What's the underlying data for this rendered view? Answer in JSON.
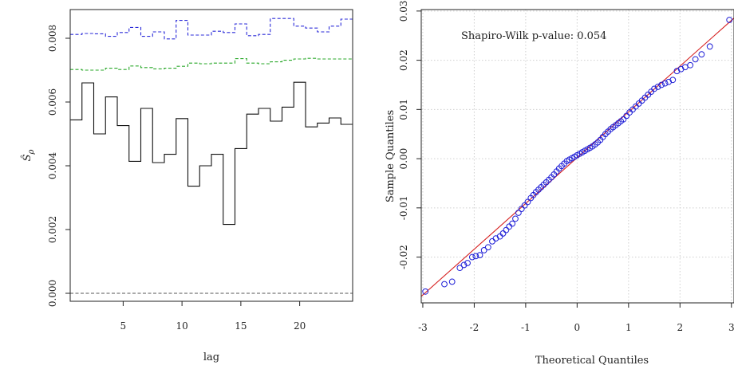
{
  "chart_data": [
    {
      "type": "line",
      "step": true,
      "xlabel": "lag",
      "ylabel": "Ŝ",
      "ylabel_subscript": "ρ",
      "xlim": [
        0.5,
        24.5
      ],
      "ylim": [
        -0.00025,
        0.0089
      ],
      "xticks": [
        5,
        10,
        15,
        20
      ],
      "yticks": [
        0.0,
        0.002,
        0.004,
        0.006,
        0.008
      ],
      "ytick_labels": [
        "0.000",
        "0.002",
        "0.004",
        "0.006",
        "0.008"
      ],
      "grid": false,
      "x": [
        1,
        2,
        3,
        4,
        5,
        6,
        7,
        8,
        9,
        10,
        11,
        12,
        13,
        14,
        15,
        16,
        17,
        18,
        19,
        20,
        21,
        22,
        23,
        24
      ],
      "series": [
        {
          "style": "dashed",
          "color": "#2b2bd9",
          "values": [
            0.00812,
            0.00815,
            0.00814,
            0.00806,
            0.00818,
            0.00834,
            0.00806,
            0.0082,
            0.00798,
            0.00856,
            0.0081,
            0.0081,
            0.00822,
            0.00818,
            0.00845,
            0.00808,
            0.00812,
            0.00862,
            0.00862,
            0.00838,
            0.00832,
            0.0082,
            0.00838,
            0.0086
          ]
        },
        {
          "style": "dashed",
          "color": "#2aa82a",
          "values": [
            0.00702,
            0.007,
            0.007,
            0.00706,
            0.00702,
            0.00713,
            0.00708,
            0.00704,
            0.00706,
            0.00712,
            0.00722,
            0.0072,
            0.00722,
            0.00722,
            0.00736,
            0.00722,
            0.0072,
            0.00726,
            0.00731,
            0.00735,
            0.00737,
            0.00735,
            0.00735,
            0.00735
          ]
        },
        {
          "style": "solid",
          "color": "#111111",
          "values": [
            0.00544,
            0.0066,
            0.005,
            0.00616,
            0.00526,
            0.00414,
            0.0058,
            0.0041,
            0.00436,
            0.00548,
            0.00336,
            0.004,
            0.00436,
            0.00216,
            0.00454,
            0.00562,
            0.0058,
            0.0054,
            0.00584,
            0.00662,
            0.00522,
            0.00534,
            0.0055,
            0.0053
          ]
        },
        {
          "style": "dashed",
          "color": "#555555",
          "reference_line": true,
          "values": [
            0,
            0,
            0,
            0,
            0,
            0,
            0,
            0,
            0,
            0,
            0,
            0,
            0,
            0,
            0,
            0,
            0,
            0,
            0,
            0,
            0,
            0,
            0,
            0
          ]
        }
      ]
    },
    {
      "type": "scatter",
      "xlabel": "Theoretical Quantiles",
      "ylabel": "Sample Quantiles",
      "annotation": "Shapiro-Wilk p-value: 0.054",
      "xlim": [
        -3.03,
        3.05
      ],
      "ylim": [
        -0.0293,
        0.0303
      ],
      "xticks": [
        -3,
        -2,
        -1,
        0,
        1,
        2,
        3
      ],
      "xtick_labels": [
        "-3",
        "-2",
        "-1",
        "0",
        "1",
        "2",
        "3"
      ],
      "yticks": [
        -0.02,
        -0.01,
        0.0,
        0.01,
        0.02,
        0.03
      ],
      "ytick_labels": [
        "-0.02",
        "-0.01",
        "0.00",
        "0.01",
        "0.02",
        "0.03"
      ],
      "grid": true,
      "point_color": "#1f1fd6",
      "line_color": "#d62020",
      "reference_line": {
        "intercept": 0.0002,
        "slope": 0.0093
      },
      "points": [
        [
          -2.95,
          -0.027
        ],
        [
          -2.58,
          -0.0255
        ],
        [
          -2.43,
          -0.025
        ],
        [
          -2.28,
          -0.0222
        ],
        [
          -2.2,
          -0.0216
        ],
        [
          -2.13,
          -0.0212
        ],
        [
          -2.04,
          -0.02
        ],
        [
          -1.97,
          -0.0198
        ],
        [
          -1.89,
          -0.0196
        ],
        [
          -1.81,
          -0.0186
        ],
        [
          -1.73,
          -0.018
        ],
        [
          -1.65,
          -0.0168
        ],
        [
          -1.58,
          -0.0162
        ],
        [
          -1.5,
          -0.0158
        ],
        [
          -1.44,
          -0.0152
        ],
        [
          -1.38,
          -0.0145
        ],
        [
          -1.32,
          -0.0138
        ],
        [
          -1.26,
          -0.0132
        ],
        [
          -1.2,
          -0.0122
        ],
        [
          -1.14,
          -0.011
        ],
        [
          -1.08,
          -0.0102
        ],
        [
          -1.02,
          -0.0095
        ],
        [
          -0.96,
          -0.0088
        ],
        [
          -0.9,
          -0.008
        ],
        [
          -0.85,
          -0.0074
        ],
        [
          -0.8,
          -0.0068
        ],
        [
          -0.75,
          -0.0063
        ],
        [
          -0.7,
          -0.0058
        ],
        [
          -0.65,
          -0.0053
        ],
        [
          -0.6,
          -0.0048
        ],
        [
          -0.55,
          -0.0043
        ],
        [
          -0.5,
          -0.0038
        ],
        [
          -0.45,
          -0.0032
        ],
        [
          -0.4,
          -0.0026
        ],
        [
          -0.35,
          -0.002
        ],
        [
          -0.3,
          -0.0015
        ],
        [
          -0.25,
          -0.001
        ],
        [
          -0.2,
          -0.0005
        ],
        [
          -0.15,
          -0.0002
        ],
        [
          -0.1,
          0.0001
        ],
        [
          -0.05,
          0.0004
        ],
        [
          0.0,
          0.0007
        ],
        [
          0.05,
          0.001
        ],
        [
          0.1,
          0.0013
        ],
        [
          0.15,
          0.0016
        ],
        [
          0.2,
          0.0019
        ],
        [
          0.25,
          0.0022
        ],
        [
          0.3,
          0.0025
        ],
        [
          0.35,
          0.0029
        ],
        [
          0.4,
          0.0033
        ],
        [
          0.45,
          0.0038
        ],
        [
          0.5,
          0.0044
        ],
        [
          0.55,
          0.005
        ],
        [
          0.6,
          0.0055
        ],
        [
          0.65,
          0.006
        ],
        [
          0.7,
          0.0064
        ],
        [
          0.75,
          0.0068
        ],
        [
          0.8,
          0.0072
        ],
        [
          0.85,
          0.0076
        ],
        [
          0.9,
          0.008
        ],
        [
          0.96,
          0.0087
        ],
        [
          1.02,
          0.0094
        ],
        [
          1.08,
          0.01
        ],
        [
          1.14,
          0.0106
        ],
        [
          1.2,
          0.0112
        ],
        [
          1.26,
          0.0118
        ],
        [
          1.32,
          0.0124
        ],
        [
          1.38,
          0.013
        ],
        [
          1.44,
          0.0136
        ],
        [
          1.5,
          0.0142
        ],
        [
          1.57,
          0.0146
        ],
        [
          1.64,
          0.015
        ],
        [
          1.71,
          0.0153
        ],
        [
          1.78,
          0.0156
        ],
        [
          1.86,
          0.016
        ],
        [
          1.94,
          0.0178
        ],
        [
          2.02,
          0.0182
        ],
        [
          2.1,
          0.0186
        ],
        [
          2.2,
          0.019
        ],
        [
          2.3,
          0.0202
        ],
        [
          2.42,
          0.0212
        ],
        [
          2.58,
          0.0228
        ],
        [
          2.96,
          0.0282
        ]
      ]
    }
  ]
}
